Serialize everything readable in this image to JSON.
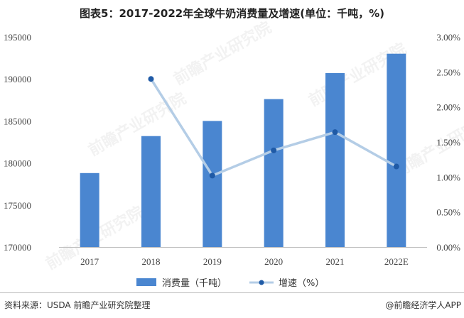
{
  "title": "图表5：2017-2022年全球牛奶消费量及增速(单位：千吨，%)",
  "source": "资料来源：USDA 前瞻产业研究院整理",
  "brand": "@前瞻经济学人APP",
  "watermark_text": "前瞻产业研究院",
  "colors": {
    "bar": "#4a86d0",
    "line": "#b4cde6",
    "marker": "#1f5aa6",
    "grid": "#d9d9d9"
  },
  "chart_data": {
    "type": "bar",
    "categories": [
      "2017",
      "2018",
      "2019",
      "2020",
      "2021",
      "2022E"
    ],
    "series": [
      {
        "name": "消费量（千吨）",
        "type": "bar",
        "axis": "left",
        "values": [
          178800,
          183200,
          185000,
          187600,
          190700,
          193000
        ]
      },
      {
        "name": "增速（%）",
        "type": "line",
        "axis": "right",
        "values": [
          null,
          2.4,
          1.02,
          1.38,
          1.64,
          1.15
        ]
      }
    ],
    "y_left": {
      "range": [
        170000,
        195000
      ],
      "ticks": [
        "170000",
        "175000",
        "180000",
        "185000",
        "190000",
        "195000"
      ]
    },
    "y_right": {
      "range": [
        0,
        3
      ],
      "ticks": [
        "0.00%",
        "0.50%",
        "1.00%",
        "1.50%",
        "2.00%",
        "2.50%",
        "3.00%"
      ]
    },
    "grid": false,
    "legend_position": "bottom"
  }
}
